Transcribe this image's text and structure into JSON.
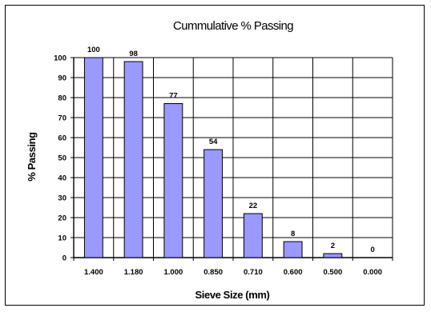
{
  "chart_data": {
    "type": "bar",
    "title": "Cummulative % Passing",
    "xlabel": "Sieve Size (mm)",
    "ylabel": "% Passing",
    "categories": [
      "1.400",
      "1.180",
      "1.000",
      "0.850",
      "0.710",
      "0.600",
      "0.500",
      "0.000"
    ],
    "values": [
      100,
      98,
      77,
      54,
      22,
      8,
      2,
      0
    ],
    "data_labels": [
      "100",
      "98",
      "77",
      "54",
      "22",
      "8",
      "2",
      "0"
    ],
    "ylim": [
      0,
      100
    ],
    "yticks": [
      "0",
      "10",
      "20",
      "30",
      "40",
      "50",
      "60",
      "70",
      "80",
      "90",
      "100"
    ],
    "grid": true,
    "legend": "none",
    "colors": {
      "bar_fill": "#9999ff",
      "bar_stroke": "#000000",
      "grid": "#000000"
    }
  }
}
